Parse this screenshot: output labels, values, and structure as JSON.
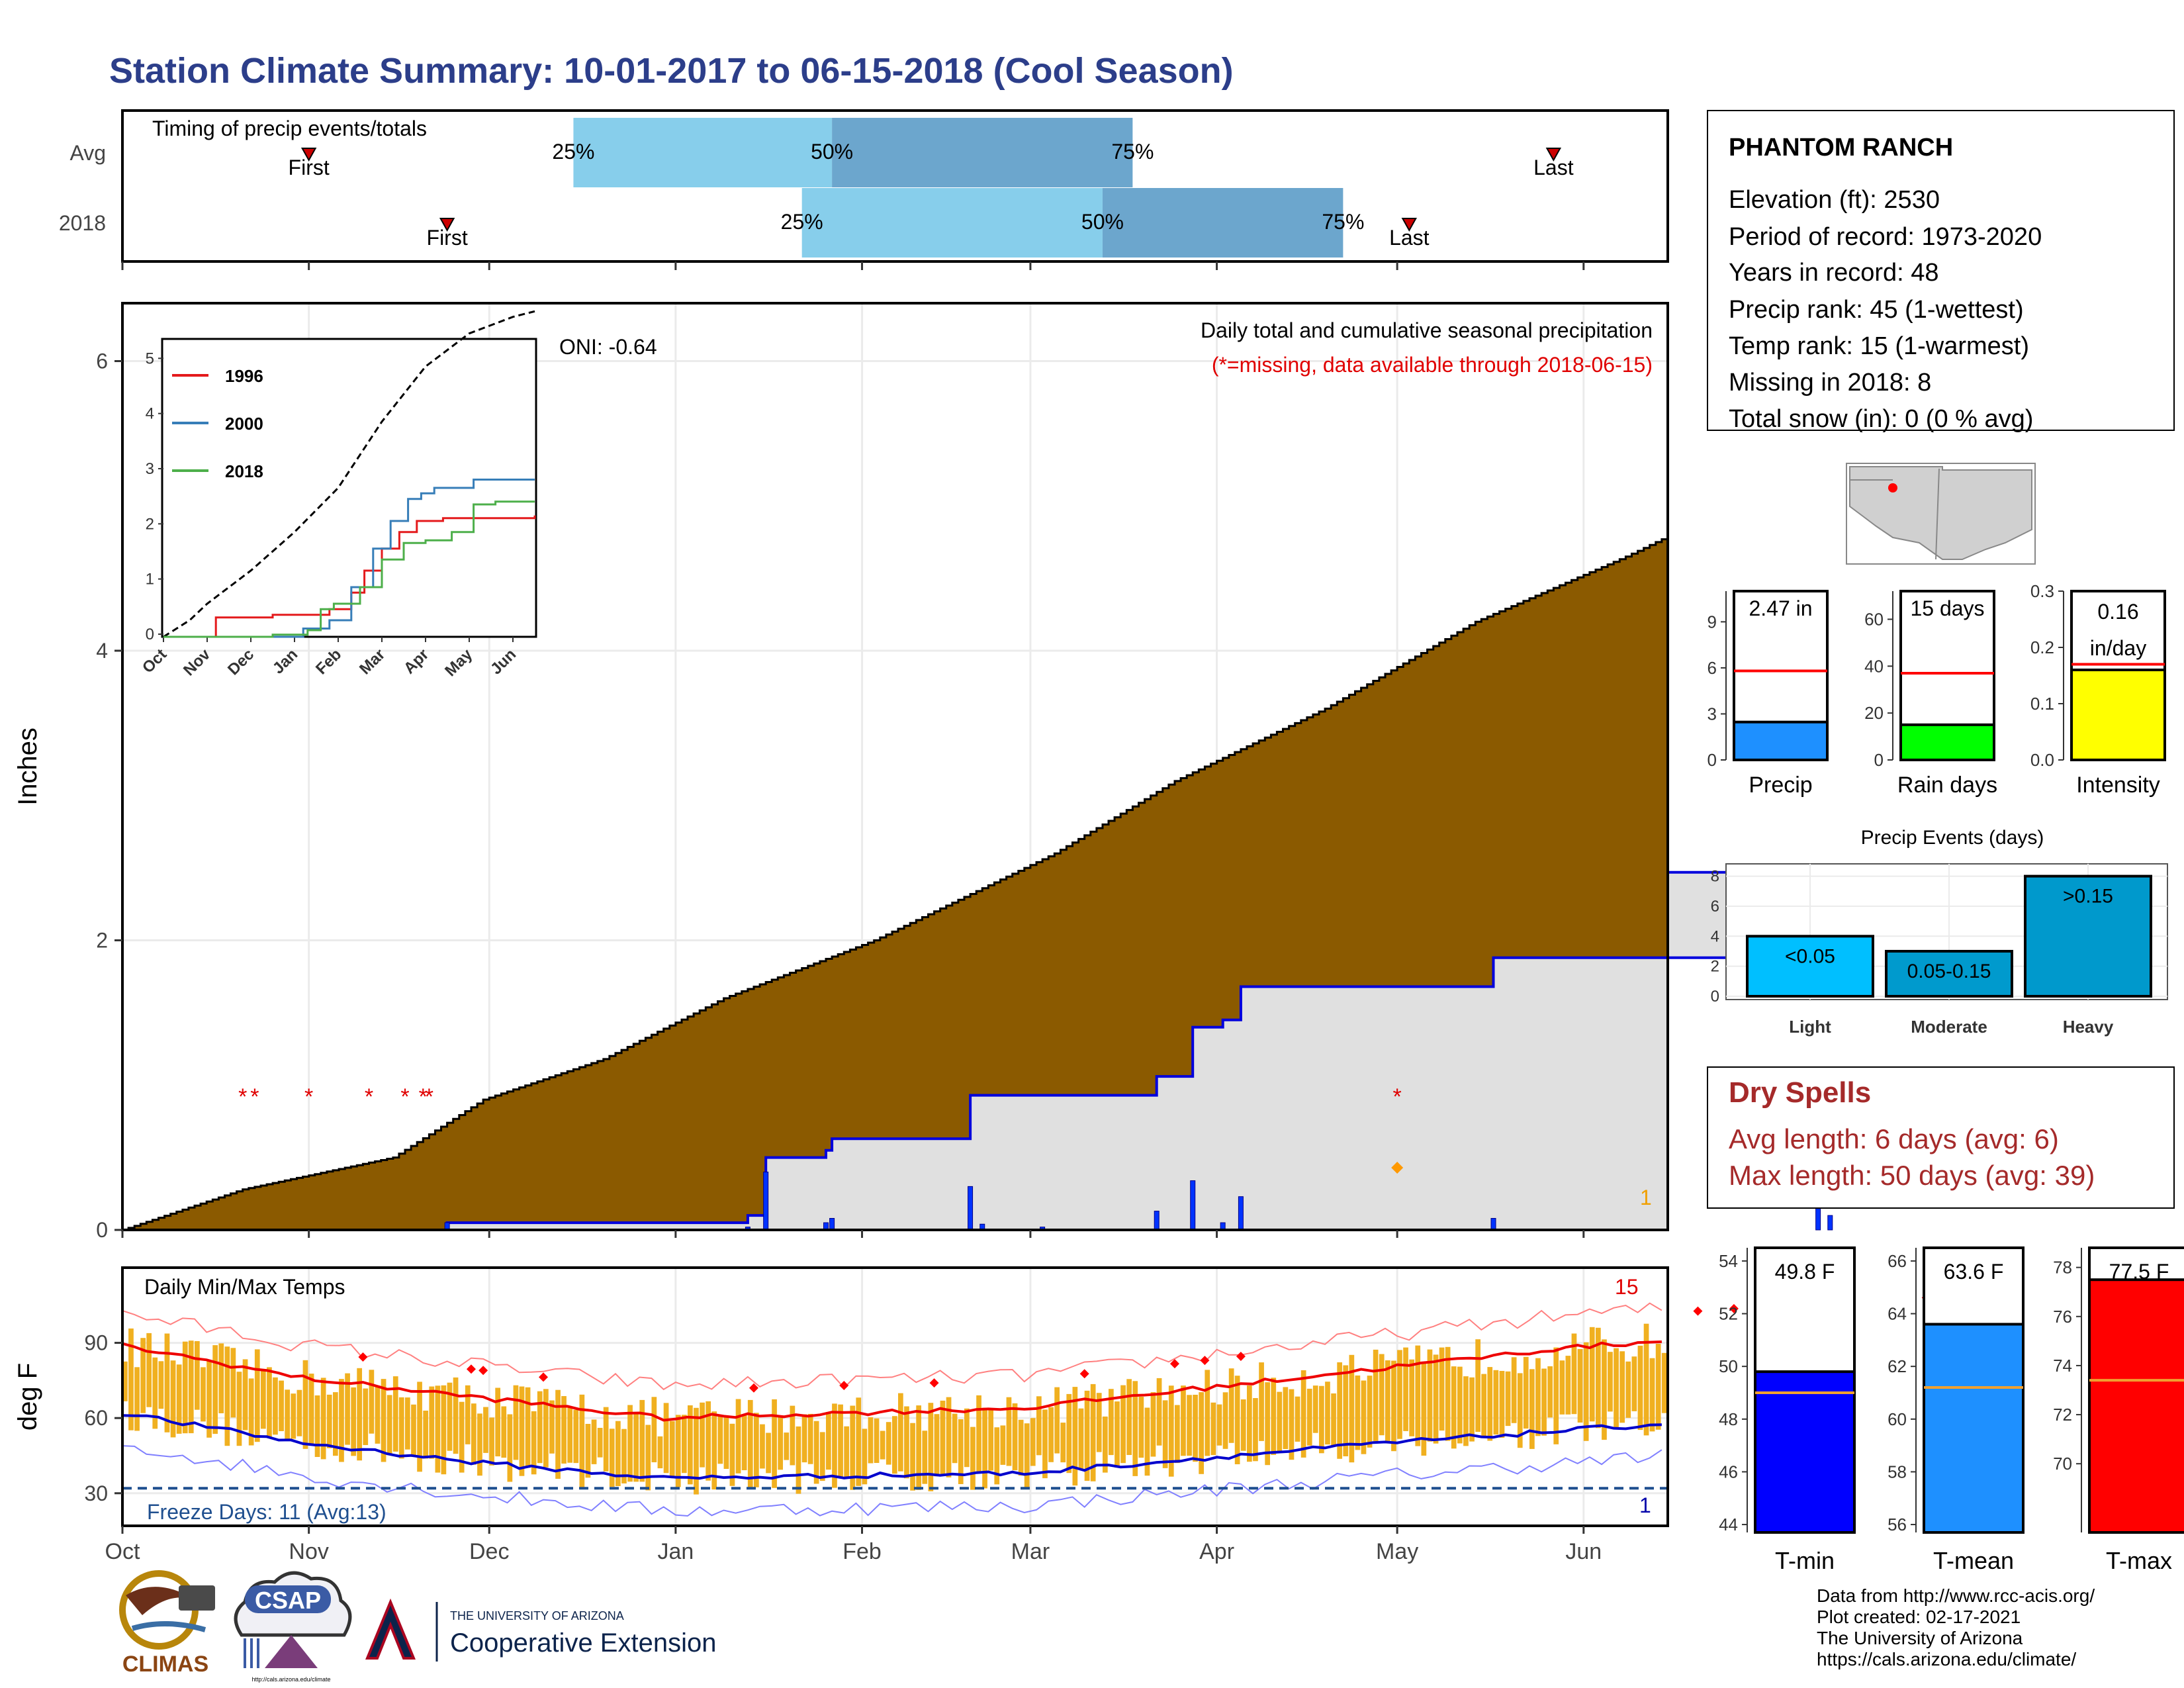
{
  "title": "Station Climate Summary: 10-01-2017 to 06-15-2018 (Cool Season)",
  "timing": {
    "label": "Timing of precip events/totals",
    "rows": [
      {
        "label": "Avg",
        "first": "2017-11-01",
        "p25": "2017-12-15",
        "p50": "2018-01-27",
        "p75": "2018-03-18",
        "last": "2018-05-27"
      },
      {
        "label": "2018",
        "first": "2017-11-24",
        "p25": "2018-01-22",
        "p50": "2018-03-13",
        "p75": "2018-04-22",
        "last": "2018-05-03"
      }
    ],
    "first_label": "First",
    "last_label": "Last",
    "p25_label": "25%",
    "p50_label": "50%",
    "p75_label": "75%"
  },
  "station": {
    "name": "PHANTOM RANCH",
    "lines": [
      "Elevation (ft): 2530",
      "Period of record: 1973-2020",
      "Years in record: 48",
      "Precip rank: 45 (1-wettest)",
      "Temp rank: 15 (1-warmest)",
      "Missing in 2018: 8",
      "Total snow (in): 0 (0 % avg)"
    ]
  },
  "months": [
    "Oct",
    "Nov",
    "Dec",
    "Jan",
    "Feb",
    "Mar",
    "Apr",
    "May",
    "Jun"
  ],
  "precip_panel": {
    "title": "Daily total and cumulative seasonal precipitation",
    "note": "(*=missing, data available through 2018-06-15)",
    "oni": "ONI: -0.64",
    "ylabel": "Inches",
    "yticks": [
      0,
      2,
      4,
      6
    ],
    "ylim": [
      0,
      6.4
    ],
    "corner_count": "1",
    "missing_dates": [
      "2017-10-21",
      "2017-10-23",
      "2017-11-01",
      "2017-11-11",
      "2017-11-17",
      "2017-11-20",
      "2017-11-21",
      "2018-05-01"
    ],
    "flag_date": "2018-05-01"
  },
  "inset": {
    "yticks": [
      0,
      1,
      2,
      3,
      4,
      5
    ],
    "xticks": [
      "Oct",
      "Nov",
      "Dec",
      "Jan",
      "Feb",
      "Mar",
      "Apr",
      "May",
      "Jun"
    ],
    "legend": [
      {
        "name": "1996",
        "color": "#e41a1c"
      },
      {
        "name": "2000",
        "color": "#377eb8"
      },
      {
        "name": "2018",
        "color": "#4daf4a"
      }
    ]
  },
  "bars_precip": {
    "label": "Precip",
    "value": 2.47,
    "avg": 5.8,
    "text": "2.47 in",
    "ticks": [
      0,
      3,
      6,
      9
    ],
    "ymax": 11,
    "color": "#1e90ff"
  },
  "bars_raindays": {
    "label": "Rain days",
    "value": 15,
    "avg": 37,
    "text": "15 days",
    "ticks": [
      0,
      20,
      40,
      60
    ],
    "ymax": 72,
    "color": "#00ff00"
  },
  "bars_intensity": {
    "label": "Intensity",
    "value": 0.16,
    "avg": 0.17,
    "text1": "0.16",
    "text2": "in/day",
    "ticks": [
      0.0,
      0.1,
      0.2,
      0.3
    ],
    "ticklabels": [
      "0.0",
      "0.1",
      "0.2",
      "0.3"
    ],
    "ymax": 0.3,
    "color": "#ffff00"
  },
  "events": {
    "title": "Precip Events (days)",
    "ticks": [
      0,
      2,
      4,
      6,
      8
    ],
    "ymax": 8.6,
    "bars": [
      {
        "name": "Light",
        "value": 4,
        "label": "<0.05",
        "color": "#00bfff"
      },
      {
        "name": "Moderate",
        "value": 3,
        "label": "0.05-0.15",
        "color": "#009acd"
      },
      {
        "name": "Heavy",
        "value": 8,
        "label": ">0.15",
        "color": "#0099cc"
      }
    ]
  },
  "dry_spells": {
    "title": "Dry Spells",
    "avg_line": "Avg length: 6 days (avg: 6)",
    "max_line": "Max length: 50 days (avg: 39)"
  },
  "temp_panel": {
    "title": "Daily Min/Max Temps",
    "ylabel": "deg F",
    "yticks": [
      30,
      60,
      90
    ],
    "ylim": [
      17,
      120
    ],
    "freeze_text": "Freeze Days: 11 (Avg:13)",
    "top_count": "15",
    "bottom_count": "1"
  },
  "temp_bars": [
    {
      "label": "T-min",
      "value": 49.8,
      "avg": 49.0,
      "text": "49.8 F",
      "ticks": [
        44,
        46,
        48,
        50,
        52,
        54
      ],
      "ymin": 43.7,
      "ymax": 54.5,
      "color": "#0000ff"
    },
    {
      "label": "T-mean",
      "value": 63.6,
      "avg": 61.2,
      "text": "63.6 F",
      "ticks": [
        56,
        58,
        60,
        62,
        64,
        66
      ],
      "ymin": 55.7,
      "ymax": 66.5,
      "color": "#1e90ff"
    },
    {
      "label": "T-max",
      "value": 77.5,
      "avg": 73.4,
      "text": "77.5 F",
      "ticks": [
        70,
        72,
        74,
        76,
        78
      ],
      "ymin": 67.2,
      "ymax": 78.8,
      "color": "#ff0000"
    }
  ],
  "logos": {
    "climas": "CLIMAS",
    "csap": "CSAP",
    "csap_url": "http://cals.arizona.edu/climate",
    "ua_small": "THE UNIVERSITY OF ARIZONA",
    "ua_big": "Cooperative Extension"
  },
  "footer": [
    "Data from http://www.rcc-acis.org/",
    "Plot created: 02-17-2021",
    "The University of Arizona",
    "https://cals.arizona.edu/climate/"
  ]
}
